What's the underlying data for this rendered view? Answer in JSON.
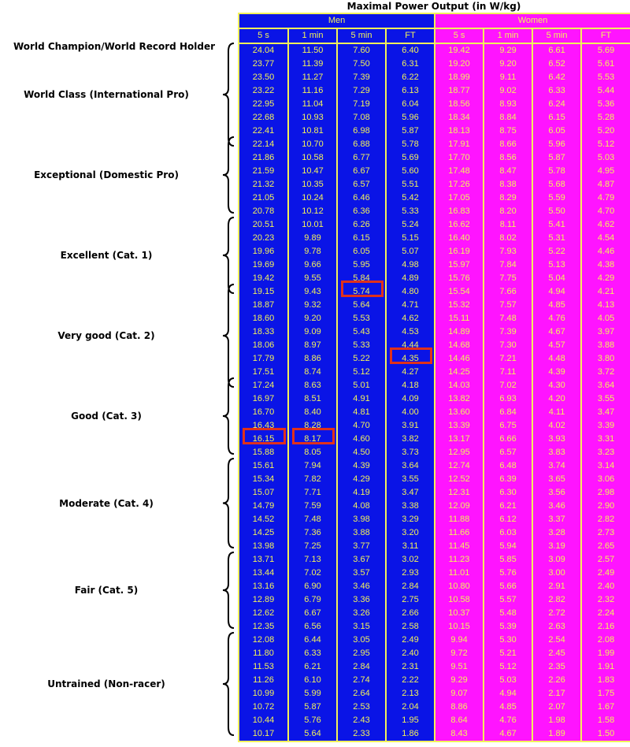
{
  "chart_data": {
    "type": "table",
    "title": "Maximal Power Output (in W/kg)",
    "groups": [
      "Men",
      "Women"
    ],
    "columns": [
      "5 s",
      "1 min",
      "5 min",
      "FT"
    ],
    "rows": [
      {
        "men": [
          "24.04",
          "11.50",
          "7.60",
          "6.40"
        ],
        "women": [
          "19.42",
          "9.29",
          "6.61",
          "5.69"
        ]
      },
      {
        "men": [
          "23.77",
          "11.39",
          "7.50",
          "6.31"
        ],
        "women": [
          "19.20",
          "9.20",
          "6.52",
          "5.61"
        ]
      },
      {
        "men": [
          "23.50",
          "11.27",
          "7.39",
          "6.22"
        ],
        "women": [
          "18.99",
          "9.11",
          "6.42",
          "5.53"
        ]
      },
      {
        "men": [
          "23.22",
          "11.16",
          "7.29",
          "6.13"
        ],
        "women": [
          "18.77",
          "9.02",
          "6.33",
          "5.44"
        ]
      },
      {
        "men": [
          "22.95",
          "11.04",
          "7.19",
          "6.04"
        ],
        "women": [
          "18.56",
          "8.93",
          "6.24",
          "5.36"
        ]
      },
      {
        "men": [
          "22.68",
          "10.93",
          "7.08",
          "5.96"
        ],
        "women": [
          "18.34",
          "8.84",
          "6.15",
          "5.28"
        ]
      },
      {
        "men": [
          "22.41",
          "10.81",
          "6.98",
          "5.87"
        ],
        "women": [
          "18.13",
          "8.75",
          "6.05",
          "5.20"
        ]
      },
      {
        "men": [
          "22.14",
          "10.70",
          "6.88",
          "5.78"
        ],
        "women": [
          "17.91",
          "8.66",
          "5.96",
          "5.12"
        ]
      },
      {
        "men": [
          "21.86",
          "10.58",
          "6.77",
          "5.69"
        ],
        "women": [
          "17.70",
          "8.56",
          "5.87",
          "5.03"
        ]
      },
      {
        "men": [
          "21.59",
          "10.47",
          "6.67",
          "5.60"
        ],
        "women": [
          "17.48",
          "8.47",
          "5.78",
          "4.95"
        ]
      },
      {
        "men": [
          "21.32",
          "10.35",
          "6.57",
          "5.51"
        ],
        "women": [
          "17.26",
          "8.38",
          "5.68",
          "4.87"
        ]
      },
      {
        "men": [
          "21.05",
          "10.24",
          "6.46",
          "5.42"
        ],
        "women": [
          "17.05",
          "8.29",
          "5.59",
          "4.79"
        ]
      },
      {
        "men": [
          "20.78",
          "10.12",
          "6.36",
          "5.33"
        ],
        "women": [
          "16.83",
          "8.20",
          "5.50",
          "4.70"
        ]
      },
      {
        "men": [
          "20.51",
          "10.01",
          "6.26",
          "5.24"
        ],
        "women": [
          "16.62",
          "8.11",
          "5.41",
          "4.62"
        ]
      },
      {
        "men": [
          "20.23",
          "9.89",
          "6.15",
          "5.15"
        ],
        "women": [
          "16.40",
          "8.02",
          "5.31",
          "4.54"
        ]
      },
      {
        "men": [
          "19.96",
          "9.78",
          "6.05",
          "5.07"
        ],
        "women": [
          "16.19",
          "7.93",
          "5.22",
          "4.46"
        ]
      },
      {
        "men": [
          "19.69",
          "9.66",
          "5.95",
          "4.98"
        ],
        "women": [
          "15.97",
          "7.84",
          "5.13",
          "4.38"
        ]
      },
      {
        "men": [
          "19.42",
          "9.55",
          "5.84",
          "4.89"
        ],
        "women": [
          "15.76",
          "7.75",
          "5.04",
          "4.29"
        ]
      },
      {
        "men": [
          "19.15",
          "9.43",
          "5.74",
          "4.80"
        ],
        "women": [
          "15.54",
          "7.66",
          "4.94",
          "4.21"
        ]
      },
      {
        "men": [
          "18.87",
          "9.32",
          "5.64",
          "4.71"
        ],
        "women": [
          "15.32",
          "7.57",
          "4.85",
          "4.13"
        ]
      },
      {
        "men": [
          "18.60",
          "9.20",
          "5.53",
          "4.62"
        ],
        "women": [
          "15.11",
          "7.48",
          "4.76",
          "4.05"
        ]
      },
      {
        "men": [
          "18.33",
          "9.09",
          "5.43",
          "4.53"
        ],
        "women": [
          "14.89",
          "7.39",
          "4.67",
          "3.97"
        ]
      },
      {
        "men": [
          "18.06",
          "8.97",
          "5.33",
          "4.44"
        ],
        "women": [
          "14.68",
          "7.30",
          "4.57",
          "3.88"
        ]
      },
      {
        "men": [
          "17.79",
          "8.86",
          "5.22",
          "4.35"
        ],
        "women": [
          "14.46",
          "7.21",
          "4.48",
          "3.80"
        ]
      },
      {
        "men": [
          "17.51",
          "8.74",
          "5.12",
          "4.27"
        ],
        "women": [
          "14.25",
          "7.11",
          "4.39",
          "3.72"
        ]
      },
      {
        "men": [
          "17.24",
          "8.63",
          "5.01",
          "4.18"
        ],
        "women": [
          "14.03",
          "7.02",
          "4.30",
          "3.64"
        ]
      },
      {
        "men": [
          "16.97",
          "8.51",
          "4.91",
          "4.09"
        ],
        "women": [
          "13.82",
          "6.93",
          "4.20",
          "3.55"
        ]
      },
      {
        "men": [
          "16.70",
          "8.40",
          "4.81",
          "4.00"
        ],
        "women": [
          "13.60",
          "6.84",
          "4.11",
          "3.47"
        ]
      },
      {
        "men": [
          "16.43",
          "8.28",
          "4.70",
          "3.91"
        ],
        "women": [
          "13.39",
          "6.75",
          "4.02",
          "3.39"
        ]
      },
      {
        "men": [
          "16.15",
          "8.17",
          "4.60",
          "3.82"
        ],
        "women": [
          "13.17",
          "6.66",
          "3.93",
          "3.31"
        ]
      },
      {
        "men": [
          "15.88",
          "8.05",
          "4.50",
          "3.73"
        ],
        "women": [
          "12.95",
          "6.57",
          "3.83",
          "3.23"
        ]
      },
      {
        "men": [
          "15.61",
          "7.94",
          "4.39",
          "3.64"
        ],
        "women": [
          "12.74",
          "6.48",
          "3.74",
          "3.14"
        ]
      },
      {
        "men": [
          "15.34",
          "7.82",
          "4.29",
          "3.55"
        ],
        "women": [
          "12.52",
          "6.39",
          "3.65",
          "3.06"
        ]
      },
      {
        "men": [
          "15.07",
          "7.71",
          "4.19",
          "3.47"
        ],
        "women": [
          "12.31",
          "6.30",
          "3.56",
          "2.98"
        ]
      },
      {
        "men": [
          "14.79",
          "7.59",
          "4.08",
          "3.38"
        ],
        "women": [
          "12.09",
          "6.21",
          "3.46",
          "2.90"
        ]
      },
      {
        "men": [
          "14.52",
          "7.48",
          "3.98",
          "3.29"
        ],
        "women": [
          "11.88",
          "6.12",
          "3.37",
          "2.82"
        ]
      },
      {
        "men": [
          "14.25",
          "7.36",
          "3.88",
          "3.20"
        ],
        "women": [
          "11.66",
          "6.03",
          "3.28",
          "2.73"
        ]
      },
      {
        "men": [
          "13.98",
          "7.25",
          "3.77",
          "3.11"
        ],
        "women": [
          "11.45",
          "5.94",
          "3.19",
          "2.65"
        ]
      },
      {
        "men": [
          "13.71",
          "7.13",
          "3.67",
          "3.02"
        ],
        "women": [
          "11.23",
          "5.85",
          "3.09",
          "2.57"
        ]
      },
      {
        "men": [
          "13.44",
          "7.02",
          "3.57",
          "2.93"
        ],
        "women": [
          "11.01",
          "5.76",
          "3.00",
          "2.49"
        ]
      },
      {
        "men": [
          "13.16",
          "6.90",
          "3.46",
          "2.84"
        ],
        "women": [
          "10.80",
          "5.66",
          "2.91",
          "2.40"
        ]
      },
      {
        "men": [
          "12.89",
          "6.79",
          "3.36",
          "2.75"
        ],
        "women": [
          "10.58",
          "5.57",
          "2.82",
          "2.32"
        ]
      },
      {
        "men": [
          "12.62",
          "6.67",
          "3.26",
          "2.66"
        ],
        "women": [
          "10.37",
          "5.48",
          "2.72",
          "2.24"
        ]
      },
      {
        "men": [
          "12.35",
          "6.56",
          "3.15",
          "2.58"
        ],
        "women": [
          "10.15",
          "5.39",
          "2.63",
          "2.16"
        ]
      },
      {
        "men": [
          "12.08",
          "6.44",
          "3.05",
          "2.49"
        ],
        "women": [
          "9.94",
          "5.30",
          "2.54",
          "2.08"
        ]
      },
      {
        "men": [
          "11.80",
          "6.33",
          "2.95",
          "2.40"
        ],
        "women": [
          "9.72",
          "5.21",
          "2.45",
          "1.99"
        ]
      },
      {
        "men": [
          "11.53",
          "6.21",
          "2.84",
          "2.31"
        ],
        "women": [
          "9.51",
          "5.12",
          "2.35",
          "1.91"
        ]
      },
      {
        "men": [
          "11.26",
          "6.10",
          "2.74",
          "2.22"
        ],
        "women": [
          "9.29",
          "5.03",
          "2.26",
          "1.83"
        ]
      },
      {
        "men": [
          "10.99",
          "5.99",
          "2.64",
          "2.13"
        ],
        "women": [
          "9.07",
          "4.94",
          "2.17",
          "1.75"
        ]
      },
      {
        "men": [
          "10.72",
          "5.87",
          "2.53",
          "2.04"
        ],
        "women": [
          "8.86",
          "4.85",
          "2.07",
          "1.67"
        ]
      },
      {
        "men": [
          "10.44",
          "5.76",
          "2.43",
          "1.95"
        ],
        "women": [
          "8.64",
          "4.76",
          "1.98",
          "1.58"
        ]
      },
      {
        "men": [
          "10.17",
          "5.64",
          "2.33",
          "1.86"
        ],
        "women": [
          "8.43",
          "4.67",
          "1.89",
          "1.50"
        ]
      }
    ],
    "categories": [
      {
        "label": "World Champion/World Record Holder",
        "rows": [
          0,
          0
        ],
        "brace": false
      },
      {
        "label": "World Class (International Pro)",
        "rows": [
          0,
          7
        ],
        "brace": true
      },
      {
        "label": "Exceptional (Domestic Pro)",
        "rows": [
          7,
          12
        ],
        "brace": true
      },
      {
        "label": "Excellent (Cat. 1)",
        "rows": [
          13,
          18
        ],
        "brace": true
      },
      {
        "label": "Very good (Cat. 2)",
        "rows": [
          18,
          25
        ],
        "brace": true
      },
      {
        "label": "Good (Cat. 3)",
        "rows": [
          25,
          30
        ],
        "brace": true
      },
      {
        "label": "Moderate (Cat. 4)",
        "rows": [
          31,
          37
        ],
        "brace": true
      },
      {
        "label": "Fair (Cat. 5)",
        "rows": [
          38,
          43
        ],
        "brace": true
      },
      {
        "label": "Untrained (Non-racer)",
        "rows": [
          44,
          51
        ],
        "brace": true
      }
    ],
    "highlights": [
      {
        "group": "men",
        "column": "5 min",
        "row": 18,
        "value": "5.74"
      },
      {
        "group": "men",
        "column": "FT",
        "row": 23,
        "value": "4.35"
      },
      {
        "group": "men",
        "column": "5 s",
        "row": 29,
        "value": "16.15"
      },
      {
        "group": "men",
        "column": "1 min",
        "row": 29,
        "value": "8.17"
      }
    ]
  },
  "colors": {
    "men_bg": "#0a14e6",
    "women_bg": "#ff14ff",
    "cell_text": "#f2f25a",
    "highlight": "#e0311b"
  }
}
